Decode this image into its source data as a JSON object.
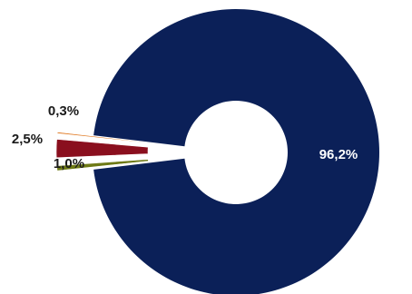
{
  "chart_data": {
    "type": "pie",
    "variant": "donut",
    "exploded_slices": [
      "2,5%",
      "0,3%",
      "1,0%"
    ],
    "slices": [
      {
        "label": "96,2%",
        "value": 96.2,
        "color": "#0b2058",
        "label_color": "#ffffff",
        "label_position": "inside"
      },
      {
        "label": "1,0%",
        "value": 1.0,
        "color": "#6e7a16",
        "label_color": "#1a1a1a",
        "label_position": "outside"
      },
      {
        "label": "2,5%",
        "value": 2.5,
        "color": "#8a0f1e",
        "label_color": "#1a1a1a",
        "label_position": "outside"
      },
      {
        "label": "0,3%",
        "value": 0.3,
        "color": "#e07a23",
        "label_color": "#1a1a1a",
        "label_position": "outside"
      }
    ],
    "title": "",
    "legend": "none"
  }
}
